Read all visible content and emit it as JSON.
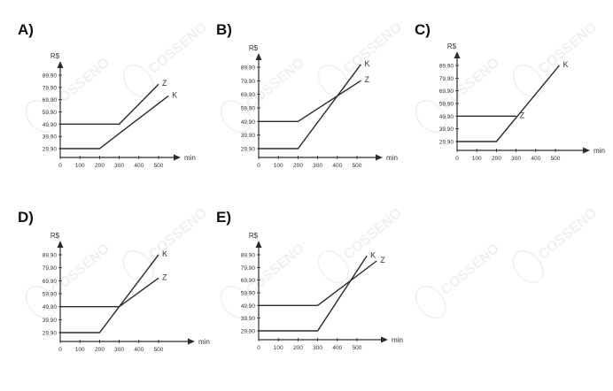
{
  "options": [
    {
      "label": "A)"
    },
    {
      "label": "B)"
    },
    {
      "label": "C)"
    },
    {
      "label": "D)"
    },
    {
      "label": "E)"
    }
  ],
  "colors": {
    "line": "#2b2b2b",
    "axis": "#2b2b2b",
    "text": "#333333"
  },
  "watermark_text": "COSSENO",
  "chart_data": [
    {
      "type": "line",
      "ylabel": "R$",
      "xlabel": "min",
      "x_ticks": [
        0,
        100,
        200,
        300,
        400,
        500
      ],
      "y_ticks": [
        "29,90",
        "39,90",
        "49,90",
        "59,90",
        "69,90",
        "79,90",
        "89,90"
      ],
      "series": [
        {
          "name": "Z",
          "points": [
            [
              0,
              49.9
            ],
            [
              300,
              49.9
            ],
            [
              500,
              82.5
            ]
          ]
        },
        {
          "name": "K",
          "points": [
            [
              0,
              29.9
            ],
            [
              200,
              29.9
            ],
            [
              550,
              73.0
            ]
          ]
        }
      ]
    },
    {
      "type": "line",
      "ylabel": "R$",
      "xlabel": "min",
      "x_ticks": [
        0,
        100,
        200,
        300,
        400,
        500
      ],
      "y_ticks": [
        "29,90",
        "39,90",
        "49,90",
        "59,90",
        "69,90",
        "79,90",
        "89,90"
      ],
      "series": [
        {
          "name": "K",
          "points": [
            [
              0,
              29.9
            ],
            [
              200,
              29.9
            ],
            [
              520,
              92.0
            ]
          ]
        },
        {
          "name": "Z",
          "points": [
            [
              0,
              49.9
            ],
            [
              200,
              49.9
            ],
            [
              520,
              80.0
            ]
          ]
        }
      ]
    },
    {
      "type": "line",
      "ylabel": "R$",
      "xlabel": "min",
      "x_ticks": [
        0,
        100,
        200,
        300,
        400,
        500
      ],
      "y_ticks": [
        "29,90",
        "39,90",
        "49,90",
        "59,90",
        "69,90",
        "79,90",
        "89,90"
      ],
      "series": [
        {
          "name": "Z",
          "points": [
            [
              0,
              49.9
            ],
            [
              300,
              49.9
            ]
          ]
        },
        {
          "name": "K",
          "points": [
            [
              0,
              29.9
            ],
            [
              200,
              29.9
            ],
            [
              520,
              90.0
            ]
          ]
        }
      ]
    },
    {
      "type": "line",
      "ylabel": "R$",
      "xlabel": "min",
      "x_ticks": [
        0,
        100,
        200,
        300,
        400,
        500
      ],
      "y_ticks": [
        "29,90",
        "39,90",
        "49,90",
        "59,90",
        "69,90",
        "79,90",
        "89,90"
      ],
      "series": [
        {
          "name": "K",
          "points": [
            [
              0,
              29.9
            ],
            [
              200,
              29.9
            ],
            [
              500,
              90.0
            ]
          ]
        },
        {
          "name": "Z",
          "points": [
            [
              0,
              49.9
            ],
            [
              300,
              49.9
            ],
            [
              500,
              72.0
            ]
          ]
        }
      ]
    },
    {
      "type": "line",
      "ylabel": "R$",
      "xlabel": "min",
      "x_ticks": [
        0,
        100,
        200,
        300,
        400,
        500
      ],
      "y_ticks": [
        "29,90",
        "39,90",
        "49,90",
        "59,90",
        "69,90",
        "79,90",
        "89,90"
      ],
      "series": [
        {
          "name": "K",
          "points": [
            [
              0,
              29.9
            ],
            [
              300,
              29.9
            ],
            [
              550,
              89.0
            ]
          ]
        },
        {
          "name": "Z",
          "points": [
            [
              0,
              49.9
            ],
            [
              300,
              49.9
            ],
            [
              600,
              85.0
            ]
          ]
        }
      ]
    }
  ]
}
